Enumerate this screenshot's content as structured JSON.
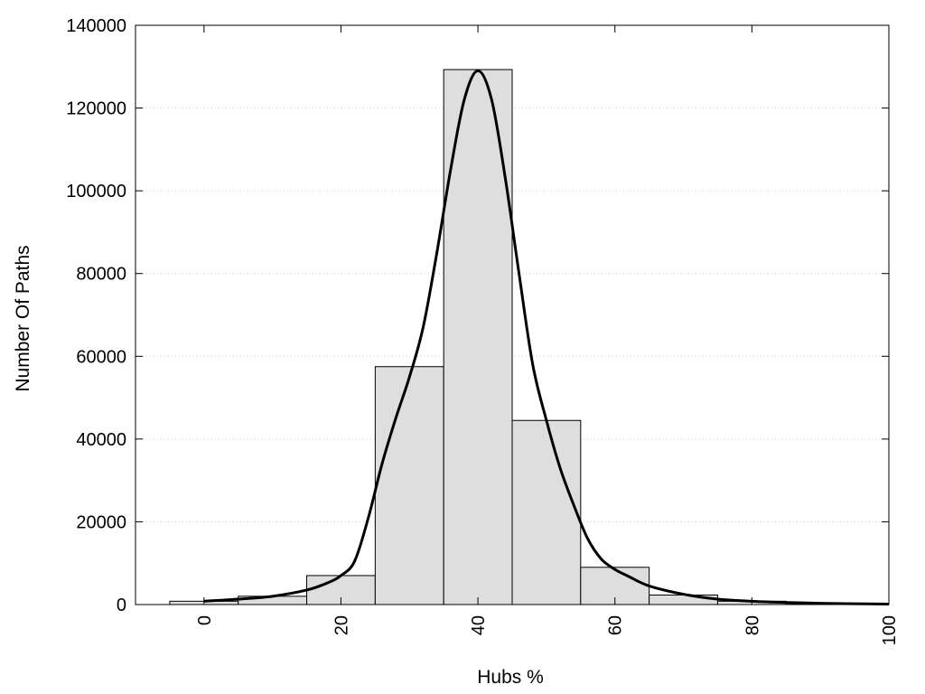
{
  "chart_data": {
    "type": "bar",
    "title": "",
    "xlabel": "Hubs %",
    "ylabel": "Number Of Paths",
    "xlim": [
      -10,
      100
    ],
    "ylim": [
      0,
      140000
    ],
    "x_ticks": [
      "0",
      "20",
      "40",
      "60",
      "80",
      "100"
    ],
    "y_ticks": [
      "0",
      "20000",
      "40000",
      "60000",
      "80000",
      "100000",
      "120000",
      "140000"
    ],
    "grid": "horizontal-dotted",
    "bar_color": "#dedede",
    "bins": [
      {
        "center": 0,
        "value": 800
      },
      {
        "center": 10,
        "value": 2000
      },
      {
        "center": 20,
        "value": 7000
      },
      {
        "center": 30,
        "value": 57500
      },
      {
        "center": 40,
        "value": 129300
      },
      {
        "center": 50,
        "value": 44500
      },
      {
        "center": 60,
        "value": 9000
      },
      {
        "center": 70,
        "value": 2300
      },
      {
        "center": 80,
        "value": 800
      },
      {
        "center": 90,
        "value": 300
      },
      {
        "center": 100,
        "value": 100
      }
    ],
    "bin_width": 10,
    "curve": {
      "type": "line",
      "x": [
        0,
        5,
        10,
        15,
        18,
        20,
        22,
        24,
        26,
        28,
        30,
        32,
        34,
        36,
        38,
        40,
        42,
        44,
        46,
        48,
        50,
        52,
        54,
        56,
        58,
        60,
        62,
        65,
        70,
        75,
        80,
        85,
        90,
        95,
        100
      ],
      "y": [
        800,
        1300,
        2000,
        3500,
        5200,
        7000,
        10500,
        21000,
        34000,
        45000,
        55000,
        67000,
        85000,
        105000,
        122000,
        129000,
        122000,
        103000,
        80000,
        58000,
        44500,
        33000,
        24000,
        16000,
        11000,
        8500,
        6800,
        4500,
        2500,
        1300,
        800,
        500,
        300,
        200,
        100
      ]
    }
  }
}
